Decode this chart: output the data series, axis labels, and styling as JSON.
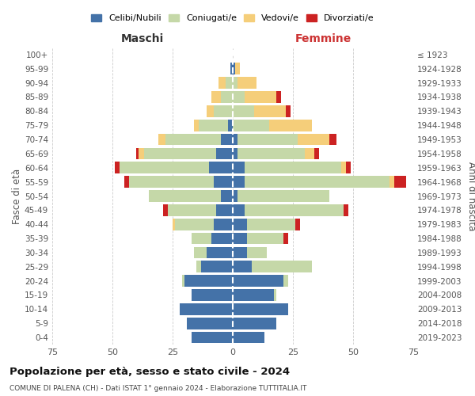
{
  "age_groups": [
    "0-4",
    "5-9",
    "10-14",
    "15-19",
    "20-24",
    "25-29",
    "30-34",
    "35-39",
    "40-44",
    "45-49",
    "50-54",
    "55-59",
    "60-64",
    "65-69",
    "70-74",
    "75-79",
    "80-84",
    "85-89",
    "90-94",
    "95-99",
    "100+"
  ],
  "birth_years": [
    "2019-2023",
    "2014-2018",
    "2009-2013",
    "2004-2008",
    "1999-2003",
    "1994-1998",
    "1989-1993",
    "1984-1988",
    "1979-1983",
    "1974-1978",
    "1969-1973",
    "1964-1968",
    "1959-1963",
    "1954-1958",
    "1949-1953",
    "1944-1948",
    "1939-1943",
    "1934-1938",
    "1929-1933",
    "1924-1928",
    "≤ 1923"
  ],
  "colors": {
    "celibi": "#4472a8",
    "coniugati": "#c5d8a8",
    "vedovi": "#f5ce7a",
    "divorziati": "#cc2222"
  },
  "maschi": {
    "celibi": [
      17,
      19,
      22,
      17,
      20,
      13,
      11,
      9,
      8,
      7,
      5,
      8,
      10,
      7,
      5,
      2,
      0,
      0,
      0,
      1,
      0
    ],
    "coniugati": [
      0,
      0,
      0,
      0,
      1,
      2,
      5,
      8,
      16,
      20,
      30,
      35,
      37,
      30,
      23,
      12,
      8,
      5,
      3,
      0,
      0
    ],
    "vedovi": [
      0,
      0,
      0,
      0,
      0,
      0,
      0,
      0,
      1,
      0,
      0,
      0,
      0,
      2,
      3,
      2,
      3,
      4,
      3,
      0,
      0
    ],
    "divorziati": [
      0,
      0,
      0,
      0,
      0,
      0,
      0,
      0,
      0,
      2,
      0,
      2,
      2,
      1,
      0,
      0,
      0,
      0,
      0,
      0,
      0
    ]
  },
  "femmine": {
    "nubili": [
      13,
      18,
      23,
      17,
      21,
      8,
      6,
      6,
      6,
      5,
      2,
      5,
      5,
      2,
      2,
      0,
      0,
      0,
      0,
      1,
      0
    ],
    "coniugate": [
      0,
      0,
      0,
      1,
      2,
      25,
      8,
      15,
      20,
      41,
      38,
      60,
      40,
      28,
      25,
      15,
      9,
      5,
      2,
      0,
      0
    ],
    "vedove": [
      0,
      0,
      0,
      0,
      0,
      0,
      0,
      0,
      0,
      0,
      0,
      2,
      2,
      4,
      13,
      18,
      13,
      13,
      8,
      2,
      0
    ],
    "divorziate": [
      0,
      0,
      0,
      0,
      0,
      0,
      0,
      2,
      2,
      2,
      0,
      5,
      2,
      2,
      3,
      0,
      2,
      2,
      0,
      0,
      0
    ]
  },
  "title": "Popolazione per età, sesso e stato civile - 2024",
  "subtitle": "COMUNE DI PALENA (CH) - Dati ISTAT 1° gennaio 2024 - Elaborazione TUTTITALIA.IT",
  "xlabel_left": "Maschi",
  "xlabel_right": "Femmine",
  "ylabel_left": "Fasce di età",
  "ylabel_right": "Anni di nascita",
  "xlim": 75,
  "legend_labels": [
    "Celibi/Nubili",
    "Coniugati/e",
    "Vedovi/e",
    "Divorziati/e"
  ],
  "background_color": "#ffffff",
  "grid_color": "#cccccc"
}
